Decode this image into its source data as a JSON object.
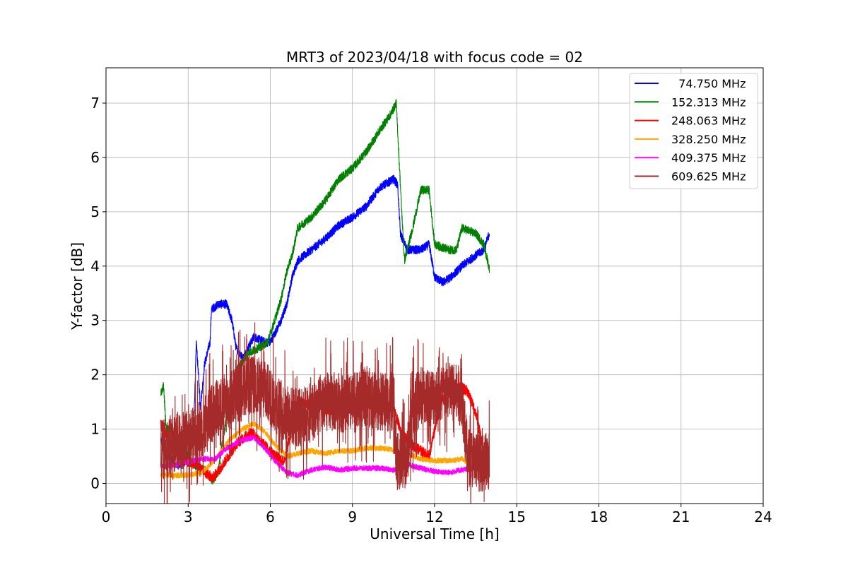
{
  "chart_data": {
    "type": "line",
    "title": "MRT3 of 2023/04/18 with focus code = 02",
    "xlabel": "Universal Time [h]",
    "ylabel": "Y-factor [dB]",
    "xlim": [
      0,
      24
    ],
    "ylim": [
      -0.37,
      7.65
    ],
    "xticks": [
      0,
      3,
      6,
      9,
      12,
      15,
      18,
      21,
      24
    ],
    "yticks": [
      0,
      1,
      2,
      3,
      4,
      5,
      6,
      7
    ],
    "grid": true,
    "legend_position": "top-right",
    "series": [
      {
        "name": "  74.750 MHz",
        "color": "#0000ff",
        "noise": 0.08,
        "points": [
          [
            2.0,
            0.8
          ],
          [
            2.2,
            0.6
          ],
          [
            2.5,
            0.35
          ],
          [
            2.8,
            0.35
          ],
          [
            3.0,
            0.5
          ],
          [
            3.2,
            1.0
          ],
          [
            3.3,
            2.6
          ],
          [
            3.45,
            1.4
          ],
          [
            3.6,
            2.2
          ],
          [
            3.8,
            2.6
          ],
          [
            3.85,
            3.2
          ],
          [
            4.1,
            3.3
          ],
          [
            4.4,
            3.3
          ],
          [
            4.6,
            3.0
          ],
          [
            4.75,
            2.5
          ],
          [
            5.0,
            2.3
          ],
          [
            5.4,
            2.7
          ],
          [
            5.8,
            2.6
          ],
          [
            6.0,
            2.6
          ],
          [
            6.2,
            2.8
          ],
          [
            6.4,
            3.0
          ],
          [
            6.6,
            3.3
          ],
          [
            6.8,
            3.8
          ],
          [
            7.0,
            4.1
          ],
          [
            7.5,
            4.3
          ],
          [
            8.0,
            4.5
          ],
          [
            8.5,
            4.75
          ],
          [
            9.0,
            4.9
          ],
          [
            9.5,
            5.1
          ],
          [
            10.0,
            5.45
          ],
          [
            10.5,
            5.6
          ],
          [
            10.65,
            5.5
          ],
          [
            10.75,
            4.6
          ],
          [
            11.0,
            4.3
          ],
          [
            11.5,
            4.3
          ],
          [
            11.8,
            4.4
          ],
          [
            12.0,
            3.8
          ],
          [
            12.3,
            3.7
          ],
          [
            12.6,
            3.8
          ],
          [
            13.0,
            4.0
          ],
          [
            13.5,
            4.2
          ],
          [
            13.8,
            4.3
          ],
          [
            14.0,
            4.6
          ]
        ]
      },
      {
        "name": "152.313 MHz",
        "color": "#008000",
        "noise": 0.08,
        "points": [
          [
            2.0,
            1.65
          ],
          [
            2.1,
            1.8
          ],
          [
            2.2,
            1.0
          ],
          [
            2.4,
            1.0
          ],
          [
            2.6,
            0.7
          ],
          [
            3.0,
            0.5
          ],
          [
            3.3,
            0.3
          ],
          [
            3.6,
            0.25
          ],
          [
            3.9,
            0.05
          ],
          [
            4.1,
            0.2
          ],
          [
            4.2,
            0.6
          ],
          [
            4.4,
            1.2
          ],
          [
            4.8,
            2.1
          ],
          [
            5.2,
            2.4
          ],
          [
            5.6,
            2.5
          ],
          [
            5.9,
            2.6
          ],
          [
            6.1,
            2.9
          ],
          [
            6.4,
            3.4
          ],
          [
            6.6,
            3.9
          ],
          [
            6.8,
            4.2
          ],
          [
            7.0,
            4.7
          ],
          [
            7.5,
            4.9
          ],
          [
            8.0,
            5.2
          ],
          [
            8.5,
            5.6
          ],
          [
            9.0,
            5.8
          ],
          [
            9.5,
            6.1
          ],
          [
            10.0,
            6.5
          ],
          [
            10.4,
            6.8
          ],
          [
            10.6,
            7.0
          ],
          [
            10.8,
            5.0
          ],
          [
            10.9,
            4.1
          ],
          [
            11.2,
            4.7
          ],
          [
            11.5,
            5.4
          ],
          [
            11.8,
            5.4
          ],
          [
            12.0,
            4.4
          ],
          [
            12.5,
            4.3
          ],
          [
            12.8,
            4.3
          ],
          [
            13.0,
            4.7
          ],
          [
            13.5,
            4.6
          ],
          [
            13.8,
            4.4
          ],
          [
            14.0,
            3.95
          ]
        ]
      },
      {
        "name": "248.063 MHz",
        "color": "#ff0000",
        "noise": 0.1,
        "points": [
          [
            2.0,
            1.1
          ],
          [
            2.3,
            0.8
          ],
          [
            2.7,
            0.5
          ],
          [
            3.0,
            0.4
          ],
          [
            3.3,
            0.35
          ],
          [
            3.6,
            0.2
          ],
          [
            3.9,
            0.1
          ],
          [
            4.2,
            0.3
          ],
          [
            4.8,
            0.75
          ],
          [
            5.3,
            0.95
          ],
          [
            5.8,
            0.7
          ],
          [
            6.2,
            0.5
          ],
          [
            6.5,
            0.4
          ],
          [
            7.0,
            1.5
          ],
          [
            7.5,
            1.45
          ],
          [
            8.0,
            1.35
          ],
          [
            9.0,
            1.4
          ],
          [
            9.5,
            1.45
          ],
          [
            10.0,
            1.5
          ],
          [
            10.5,
            1.4
          ],
          [
            10.8,
            0.9
          ],
          [
            11.2,
            0.7
          ],
          [
            11.8,
            0.5
          ],
          [
            12.2,
            1.5
          ],
          [
            12.8,
            1.8
          ],
          [
            13.2,
            1.7
          ],
          [
            13.5,
            1.3
          ],
          [
            13.8,
            0.6
          ],
          [
            14.0,
            0.4
          ]
        ]
      },
      {
        "name": "328.250 MHz",
        "color": "#ffa500",
        "noise": 0.05,
        "points": [
          [
            2.0,
            0.15
          ],
          [
            2.5,
            0.15
          ],
          [
            3.0,
            0.15
          ],
          [
            3.5,
            0.2
          ],
          [
            4.0,
            0.45
          ],
          [
            4.5,
            0.8
          ],
          [
            5.0,
            1.0
          ],
          [
            5.4,
            1.1
          ],
          [
            5.8,
            0.95
          ],
          [
            6.2,
            0.7
          ],
          [
            6.6,
            0.5
          ],
          [
            7.0,
            0.55
          ],
          [
            7.5,
            0.6
          ],
          [
            8.0,
            0.55
          ],
          [
            8.5,
            0.6
          ],
          [
            9.0,
            0.6
          ],
          [
            9.5,
            0.65
          ],
          [
            10.0,
            0.65
          ],
          [
            10.5,
            0.62
          ],
          [
            11.0,
            0.55
          ],
          [
            11.5,
            0.45
          ],
          [
            12.0,
            0.42
          ],
          [
            12.5,
            0.42
          ],
          [
            13.0,
            0.45
          ],
          [
            13.5,
            0.3
          ],
          [
            14.0,
            0.15
          ]
        ]
      },
      {
        "name": "409.375 MHz",
        "color": "#ff00ff",
        "noise": 0.05,
        "points": [
          [
            2.0,
            0.3
          ],
          [
            2.5,
            0.35
          ],
          [
            3.0,
            0.4
          ],
          [
            3.5,
            0.45
          ],
          [
            4.0,
            0.45
          ],
          [
            4.4,
            0.65
          ],
          [
            5.0,
            0.8
          ],
          [
            5.4,
            0.85
          ],
          [
            5.8,
            0.65
          ],
          [
            6.2,
            0.4
          ],
          [
            6.6,
            0.2
          ],
          [
            7.0,
            0.15
          ],
          [
            7.5,
            0.25
          ],
          [
            8.0,
            0.3
          ],
          [
            8.5,
            0.25
          ],
          [
            9.0,
            0.28
          ],
          [
            9.5,
            0.28
          ],
          [
            10.0,
            0.28
          ],
          [
            10.5,
            0.25
          ],
          [
            11.0,
            0.35
          ],
          [
            11.5,
            0.28
          ],
          [
            12.0,
            0.22
          ],
          [
            12.5,
            0.2
          ],
          [
            13.0,
            0.25
          ],
          [
            13.5,
            0.28
          ],
          [
            14.0,
            0.25
          ]
        ]
      },
      {
        "name": "609.625 MHz",
        "color": "#a52a2a",
        "noise": 0.55,
        "points": [
          [
            2.0,
            0.6
          ],
          [
            2.5,
            0.75
          ],
          [
            3.0,
            0.8
          ],
          [
            3.5,
            1.0
          ],
          [
            4.0,
            1.4
          ],
          [
            4.5,
            1.5
          ],
          [
            5.0,
            1.8
          ],
          [
            5.5,
            1.8
          ],
          [
            6.0,
            1.6
          ],
          [
            6.5,
            1.3
          ],
          [
            7.0,
            1.2
          ],
          [
            7.5,
            1.3
          ],
          [
            8.0,
            1.5
          ],
          [
            8.5,
            1.5
          ],
          [
            9.0,
            1.45
          ],
          [
            9.5,
            1.6
          ],
          [
            10.0,
            1.5
          ],
          [
            10.5,
            1.5
          ],
          [
            10.6,
            0.4
          ],
          [
            11.0,
            0.5
          ],
          [
            11.2,
            1.4
          ],
          [
            11.5,
            1.6
          ],
          [
            12.0,
            1.6
          ],
          [
            12.5,
            1.7
          ],
          [
            13.0,
            1.6
          ],
          [
            13.2,
            0.5
          ],
          [
            13.6,
            0.4
          ],
          [
            14.0,
            0.4
          ]
        ]
      }
    ]
  }
}
